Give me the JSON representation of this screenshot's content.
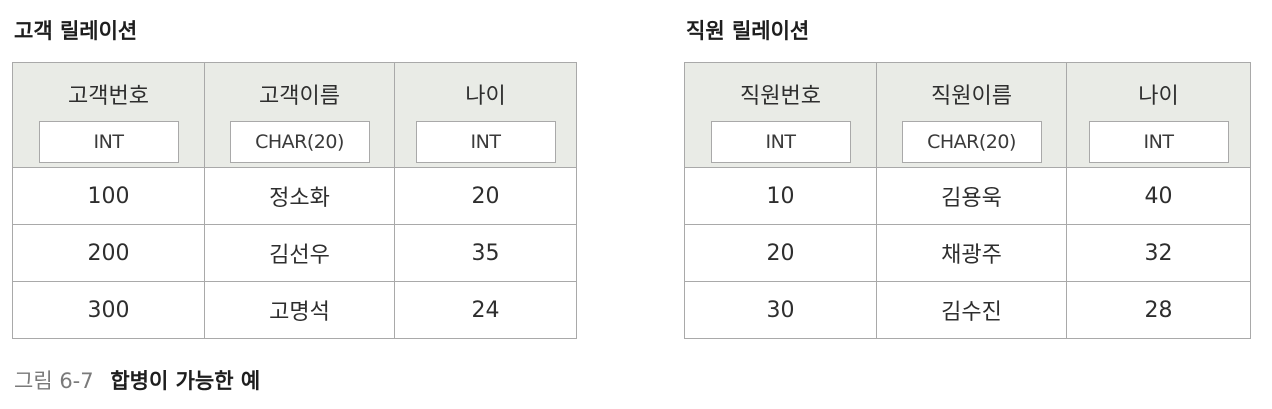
{
  "relations": [
    {
      "title": "고객 릴레이션",
      "columns": [
        {
          "name": "고객번호",
          "type": "INT"
        },
        {
          "name": "고객이름",
          "type": "CHAR(20)"
        },
        {
          "name": "나이",
          "type": "INT"
        }
      ],
      "rows": [
        [
          "100",
          "정소화",
          "20"
        ],
        [
          "200",
          "김선우",
          "35"
        ],
        [
          "300",
          "고명석",
          "24"
        ]
      ]
    },
    {
      "title": "직원 릴레이션",
      "columns": [
        {
          "name": "직원번호",
          "type": "INT"
        },
        {
          "name": "직원이름",
          "type": "CHAR(20)"
        },
        {
          "name": "나이",
          "type": "INT"
        }
      ],
      "rows": [
        [
          "10",
          "김용욱",
          "40"
        ],
        [
          "20",
          "채광주",
          "32"
        ],
        [
          "30",
          "김수진",
          "28"
        ]
      ]
    }
  ],
  "caption": {
    "label": "그림 6-7",
    "text": "합병이 가능한 예"
  }
}
